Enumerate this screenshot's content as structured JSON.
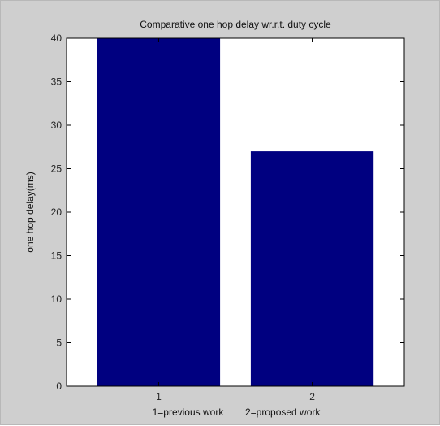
{
  "chart_data": {
    "type": "bar",
    "title": "Comparative one hop delay wr.r.t. duty cycle",
    "xlabel": "1=previous work        2=proposed work",
    "ylabel": "one hop delay(ms)",
    "categories": [
      "1",
      "2"
    ],
    "values": [
      40,
      27
    ],
    "ylim": [
      0,
      40
    ],
    "yticks": [
      "0",
      "5",
      "10",
      "15",
      "20",
      "25",
      "30",
      "35",
      "40"
    ],
    "xlim": [
      0.4,
      2.6
    ],
    "bar_color": "#000080",
    "grid": false,
    "legend": "none"
  },
  "colors": {
    "figure_background": "#cfcfcf",
    "plot_background": "#ffffff",
    "bar": "#000080"
  }
}
